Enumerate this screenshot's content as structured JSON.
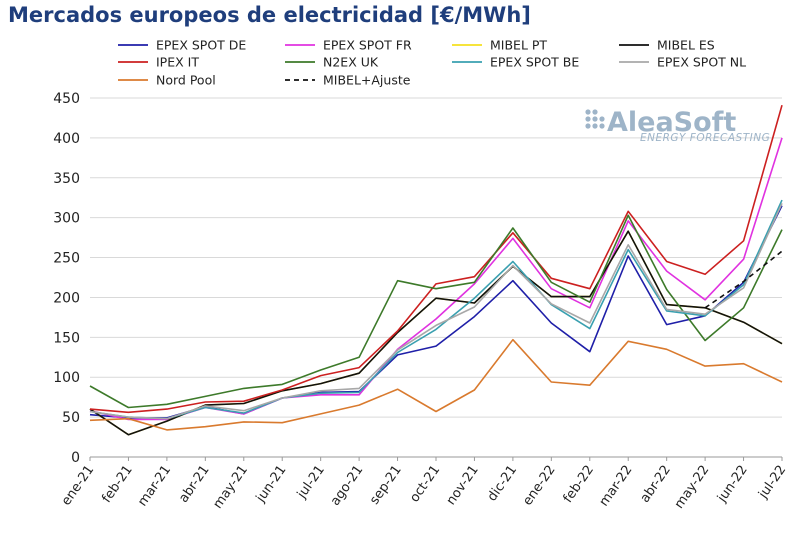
{
  "title": "Mercados europeos de electricidad [€/MWh]",
  "logo": {
    "name": "AleaSoft",
    "tagline": "ENERGY FORECASTING"
  },
  "chart_data": {
    "type": "line",
    "title": "Mercados europeos de electricidad [€/MWh]",
    "xlabel": "",
    "ylabel": "",
    "ylim": [
      0,
      450
    ],
    "yticks": [
      0,
      50,
      100,
      150,
      200,
      250,
      300,
      350,
      400,
      450
    ],
    "grid": "horizontal",
    "legend_position": "top",
    "categories": [
      "ene-21",
      "feb-21",
      "mar-21",
      "abr-21",
      "may-21",
      "jun-21",
      "jul-21",
      "ago-21",
      "sep-21",
      "oct-21",
      "nov-21",
      "dic-21",
      "ene-22",
      "feb-22",
      "mar-22",
      "abr-22",
      "may-22",
      "jun-22",
      "jul-22"
    ],
    "series": [
      {
        "name": "EPEX SPOT DE",
        "color": "#1f1fa8",
        "dash": false,
        "values": [
          53,
          49,
          49,
          63,
          54,
          74,
          81,
          82,
          128,
          139,
          176,
          221,
          168,
          132,
          252,
          166,
          177,
          219,
          315
        ]
      },
      {
        "name": "EPEX SPOT FR",
        "color": "#e032e0",
        "dash": false,
        "values": [
          58,
          47,
          47,
          62,
          54,
          74,
          78,
          78,
          135,
          173,
          217,
          274,
          211,
          187,
          296,
          233,
          197,
          248,
          400
        ]
      },
      {
        "name": "MIBEL PT",
        "color": "#f5e020",
        "dash": false,
        "values": [
          60,
          28,
          45,
          65,
          67,
          83,
          92,
          105,
          156,
          199,
          193,
          239,
          201,
          201,
          283,
          191,
          187,
          169,
          142
        ]
      },
      {
        "name": "MIBEL ES",
        "color": "#111111",
        "dash": false,
        "values": [
          60,
          28,
          45,
          65,
          67,
          83,
          92,
          105,
          156,
          199,
          193,
          239,
          201,
          201,
          283,
          191,
          187,
          169,
          142
        ]
      },
      {
        "name": "IPEX IT",
        "color": "#cc2020",
        "dash": false,
        "values": [
          60,
          56,
          60,
          69,
          70,
          84,
          102,
          112,
          158,
          217,
          226,
          281,
          224,
          211,
          308,
          245,
          229,
          271,
          441
        ]
      },
      {
        "name": "N2EX UK",
        "color": "#3d7a2a",
        "dash": false,
        "values": [
          89,
          62,
          66,
          76,
          86,
          91,
          109,
          125,
          221,
          211,
          219,
          287,
          219,
          194,
          303,
          210,
          146,
          187,
          285
        ]
      },
      {
        "name": "EPEX SPOT BE",
        "color": "#3aa0b0",
        "dash": false,
        "values": [
          57,
          50,
          48,
          62,
          55,
          74,
          80,
          81,
          131,
          160,
          199,
          245,
          191,
          161,
          260,
          183,
          177,
          216,
          322
        ]
      },
      {
        "name": "EPEX SPOT NL",
        "color": "#a8a8a8",
        "dash": false,
        "values": [
          57,
          50,
          48,
          64,
          58,
          74,
          83,
          86,
          134,
          165,
          188,
          240,
          192,
          168,
          266,
          185,
          179,
          212,
          318
        ]
      },
      {
        "name": "Nord Pool",
        "color": "#d97a2e",
        "dash": false,
        "values": [
          46,
          48,
          34,
          38,
          44,
          43,
          54,
          65,
          85,
          57,
          84,
          147,
          94,
          90,
          145,
          135,
          114,
          117,
          94
        ]
      },
      {
        "name": "MIBEL+Ajuste",
        "color": "#111111",
        "dash": true,
        "start_index": 16,
        "values": [
          null,
          null,
          null,
          null,
          null,
          null,
          null,
          null,
          null,
          null,
          null,
          null,
          null,
          null,
          null,
          null,
          187,
          220,
          258
        ]
      }
    ]
  }
}
